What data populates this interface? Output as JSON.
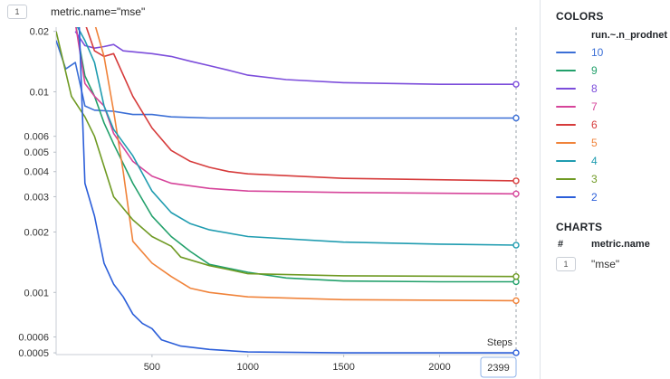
{
  "chart_header": {
    "badge": "1",
    "title": "metric.name=\"mse\""
  },
  "chart_data": {
    "type": "line",
    "xlabel": "Steps",
    "x_ticks": [
      500,
      1000,
      1500,
      2000
    ],
    "y_scale": "log",
    "y_ticks": [
      0.02,
      0.01,
      0.006,
      0.005,
      0.004,
      0.003,
      0.002,
      0.001,
      0.0006,
      0.0005
    ],
    "y_tick_labels": [
      "0.02",
      "0.01",
      "0.006",
      "0.005",
      "0.004",
      "0.003",
      "0.002",
      "0.001",
      "0.0006",
      "0.0005"
    ],
    "xlim": [
      0,
      2399
    ],
    "ylim": [
      0.00049,
      0.021
    ],
    "hover_step": 2399,
    "series": [
      {
        "name": "10",
        "color": "#3b6fd6",
        "points": [
          [
            0,
            0.018
          ],
          [
            50,
            0.013
          ],
          [
            100,
            0.014
          ],
          [
            150,
            0.0085
          ],
          [
            200,
            0.0081
          ],
          [
            300,
            0.008
          ],
          [
            400,
            0.0077
          ],
          [
            500,
            0.0077
          ],
          [
            600,
            0.0075
          ],
          [
            800,
            0.0074
          ],
          [
            1000,
            0.0074
          ],
          [
            1500,
            0.0074
          ],
          [
            2000,
            0.0074
          ],
          [
            2399,
            0.0074
          ]
        ]
      },
      {
        "name": "9",
        "color": "#22a06b",
        "points": [
          [
            50,
            0.025
          ],
          [
            100,
            0.022
          ],
          [
            150,
            0.012
          ],
          [
            200,
            0.0095
          ],
          [
            250,
            0.007
          ],
          [
            300,
            0.0055
          ],
          [
            400,
            0.0035
          ],
          [
            500,
            0.0024
          ],
          [
            600,
            0.0019
          ],
          [
            700,
            0.0016
          ],
          [
            800,
            0.00138
          ],
          [
            1000,
            0.00126
          ],
          [
            1200,
            0.00118
          ],
          [
            1500,
            0.00114
          ],
          [
            2000,
            0.00113
          ],
          [
            2399,
            0.00113
          ]
        ]
      },
      {
        "name": "8",
        "color": "#7c4ddb",
        "points": [
          [
            100,
            0.02
          ],
          [
            150,
            0.017
          ],
          [
            200,
            0.0165
          ],
          [
            250,
            0.0168
          ],
          [
            300,
            0.0172
          ],
          [
            350,
            0.016
          ],
          [
            500,
            0.0155
          ],
          [
            600,
            0.015
          ],
          [
            700,
            0.0142
          ],
          [
            800,
            0.0135
          ],
          [
            900,
            0.0128
          ],
          [
            1000,
            0.0121
          ],
          [
            1200,
            0.0115
          ],
          [
            1500,
            0.0111
          ],
          [
            2000,
            0.0109
          ],
          [
            2399,
            0.0109
          ]
        ]
      },
      {
        "name": "7",
        "color": "#d6449a",
        "points": [
          [
            100,
            0.022
          ],
          [
            150,
            0.011
          ],
          [
            200,
            0.0095
          ],
          [
            250,
            0.0085
          ],
          [
            300,
            0.0062
          ],
          [
            400,
            0.0045
          ],
          [
            500,
            0.0038
          ],
          [
            600,
            0.0035
          ],
          [
            700,
            0.0034
          ],
          [
            800,
            0.0033
          ],
          [
            1000,
            0.0032
          ],
          [
            1500,
            0.00315
          ],
          [
            2399,
            0.0031
          ]
        ]
      },
      {
        "name": "6",
        "color": "#d63b3b",
        "points": [
          [
            150,
            0.022
          ],
          [
            200,
            0.016
          ],
          [
            250,
            0.015
          ],
          [
            300,
            0.0155
          ],
          [
            400,
            0.0095
          ],
          [
            500,
            0.0066
          ],
          [
            600,
            0.0051
          ],
          [
            700,
            0.0045
          ],
          [
            800,
            0.0042
          ],
          [
            900,
            0.004
          ],
          [
            1000,
            0.0039
          ],
          [
            1500,
            0.0037
          ],
          [
            2399,
            0.0036
          ]
        ]
      },
      {
        "name": "5",
        "color": "#f0833a",
        "points": [
          [
            200,
            0.022
          ],
          [
            250,
            0.015
          ],
          [
            300,
            0.008
          ],
          [
            350,
            0.004
          ],
          [
            400,
            0.0018
          ],
          [
            500,
            0.0014
          ],
          [
            600,
            0.0012
          ],
          [
            700,
            0.00105
          ],
          [
            800,
            0.001
          ],
          [
            1000,
            0.00095
          ],
          [
            1500,
            0.00092
          ],
          [
            2399,
            0.00091
          ]
        ]
      },
      {
        "name": "4",
        "color": "#1f9cb0",
        "points": [
          [
            100,
            0.022
          ],
          [
            150,
            0.018
          ],
          [
            200,
            0.014
          ],
          [
            250,
            0.0085
          ],
          [
            300,
            0.0065
          ],
          [
            400,
            0.0048
          ],
          [
            500,
            0.0032
          ],
          [
            600,
            0.0025
          ],
          [
            700,
            0.0022
          ],
          [
            800,
            0.00205
          ],
          [
            1000,
            0.0019
          ],
          [
            1500,
            0.00178
          ],
          [
            2000,
            0.00174
          ],
          [
            2399,
            0.00172
          ]
        ]
      },
      {
        "name": "3",
        "color": "#6f9a23",
        "points": [
          [
            0,
            0.02
          ],
          [
            80,
            0.0095
          ],
          [
            150,
            0.0075
          ],
          [
            200,
            0.006
          ],
          [
            300,
            0.003
          ],
          [
            400,
            0.0023
          ],
          [
            500,
            0.0019
          ],
          [
            600,
            0.0017
          ],
          [
            650,
            0.0015
          ],
          [
            800,
            0.00136
          ],
          [
            900,
            0.0013
          ],
          [
            1000,
            0.00124
          ],
          [
            1500,
            0.00121
          ],
          [
            2399,
            0.0012
          ]
        ]
      },
      {
        "name": "2",
        "color": "#2b5ed9",
        "points": [
          [
            120,
            0.022
          ],
          [
            150,
            0.0035
          ],
          [
            200,
            0.0024
          ],
          [
            250,
            0.0014
          ],
          [
            300,
            0.0011
          ],
          [
            350,
            0.00095
          ],
          [
            400,
            0.00078
          ],
          [
            450,
            0.0007
          ],
          [
            500,
            0.00066
          ],
          [
            550,
            0.00058
          ],
          [
            650,
            0.00054
          ],
          [
            800,
            0.00052
          ],
          [
            1000,
            0.000505
          ],
          [
            1500,
            0.0005
          ],
          [
            2399,
            0.0005
          ]
        ]
      }
    ]
  },
  "sidebar": {
    "colors_title": "COLORS",
    "colors_column": "run.~.n_prodnet",
    "charts_title": "CHARTS",
    "charts_hash": "#",
    "charts_column": "metric.name",
    "charts_row_badge": "1",
    "charts_row_value": "\"mse\""
  }
}
